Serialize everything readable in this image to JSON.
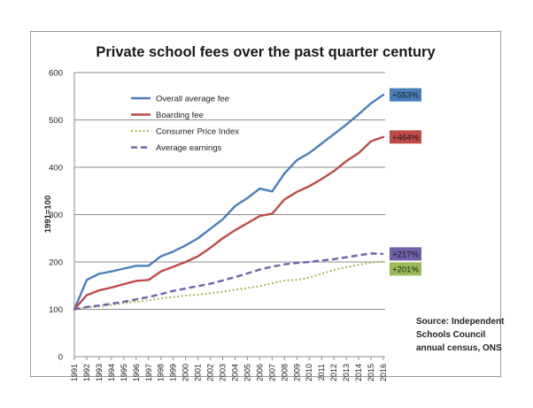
{
  "chart_data": {
    "type": "line",
    "title": "Private school fees over the past quarter century",
    "ylabel": "1991=100",
    "xlabel": "",
    "ylim": [
      0,
      600
    ],
    "yticks": [
      0,
      100,
      200,
      300,
      400,
      500,
      600
    ],
    "grid": true,
    "legend_position": "top-left",
    "x": [
      "1991",
      "1992",
      "1993",
      "1994",
      "1995",
      "1996",
      "1997",
      "1998",
      "1999",
      "2000",
      "2001",
      "2002",
      "2003",
      "2004",
      "2005",
      "2006",
      "2007",
      "2008",
      "2009",
      "2010",
      "2011",
      "2012",
      "2013",
      "2014",
      "2015",
      "2016"
    ],
    "series": [
      {
        "name": "Overall average fee",
        "color": "#4a7ebb",
        "style": "solid",
        "values": [
          100,
          162,
          175,
          180,
          186,
          192,
          192,
          212,
          222,
          235,
          250,
          270,
          290,
          318,
          335,
          355,
          349,
          387,
          415,
          430,
          450,
          470,
          490,
          512,
          535,
          553
        ],
        "end_label": "+553%"
      },
      {
        "name": "Boarding fee",
        "color": "#be4b48",
        "style": "solid",
        "values": [
          100,
          130,
          140,
          146,
          153,
          160,
          162,
          180,
          190,
          200,
          212,
          230,
          250,
          267,
          282,
          297,
          302,
          332,
          348,
          360,
          375,
          392,
          413,
          430,
          455,
          464
        ],
        "end_label": "+464%"
      },
      {
        "name": "Consumer Price Index",
        "color": "#9bbb59",
        "style": "dotted",
        "values": [
          100,
          104,
          106,
          109,
          113,
          116,
          119,
          123,
          126,
          129,
          131,
          134,
          137,
          141,
          145,
          149,
          155,
          161,
          162,
          167,
          175,
          183,
          189,
          194,
          199,
          201
        ],
        "end_label": "+201%"
      },
      {
        "name": "Average earnings",
        "color": "#7060a8",
        "style": "dashed",
        "values": [
          100,
          105,
          108,
          112,
          116,
          121,
          126,
          132,
          139,
          144,
          149,
          154,
          161,
          168,
          176,
          184,
          190,
          195,
          198,
          200,
          203,
          206,
          210,
          214,
          218,
          217
        ],
        "end_label": "+217%"
      }
    ],
    "source": [
      "Source: Independent",
      "Schools Council",
      "annual census, ONS"
    ]
  }
}
